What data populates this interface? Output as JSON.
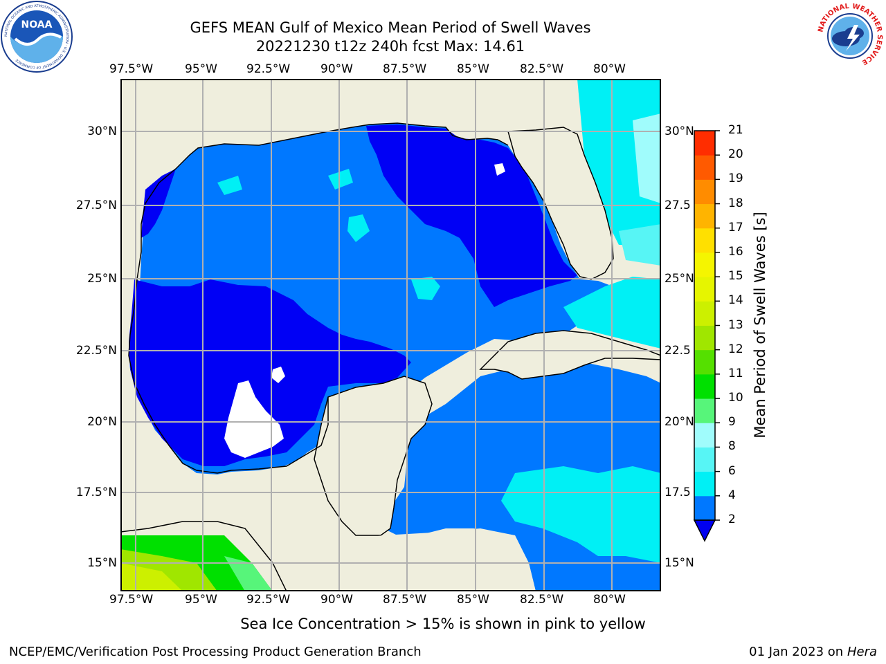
{
  "header": {
    "title": "GEFS MEAN Gulf of Mexico Mean Period of Swell Waves",
    "subtitle": "20221230 t12z 240h fcst   Max: 14.61"
  },
  "logos": {
    "noaa_text": "NOAA",
    "noaa_ring_text": "NATIONAL OCEANIC AND ATMOSPHERIC ADMINISTRATION · U.S. DEPARTMENT OF COMMERCE",
    "nws_ring_text": "NATIONAL WEATHER SERVICE"
  },
  "map": {
    "lon_ticks": [
      "97.5°W",
      "95°W",
      "92.5°W",
      "90°W",
      "87.5°W",
      "85°W",
      "82.5°W",
      "80°W"
    ],
    "lat_ticks_left": [
      "30°N",
      "27.5°N",
      "25°N",
      "22.5°N",
      "20°N",
      "17.5°N",
      "15°N"
    ],
    "lat_ticks_right": [
      "30°N",
      "27.5",
      "25°N",
      "22.5",
      "20°N",
      "17.5",
      "15°N"
    ],
    "colors": {
      "land": "#efeedd",
      "deep_blue": "#0000f5",
      "mid_blue": "#0078ff",
      "cyan": "#00f0f5",
      "light_cyan": "#57f5f5",
      "pale_cyan": "#a0fcfc",
      "grid": "#b0b0b0"
    }
  },
  "colorbar": {
    "label": "Mean Period of Swell Waves [s]",
    "ticks": [
      "21",
      "20",
      "19",
      "18",
      "17",
      "16",
      "15",
      "14",
      "13",
      "12",
      "11",
      "10",
      "9",
      "8",
      "6",
      "4",
      "2"
    ],
    "colors_bottom_to_top": [
      "#0000f0",
      "#0078ff",
      "#00f0f5",
      "#57f5f5",
      "#a0fcfc",
      "#57f57a",
      "#00e000",
      "#55e000",
      "#a0e600",
      "#ccf000",
      "#e6f500",
      "#f5f500",
      "#ffe000",
      "#ffb400",
      "#ff8c00",
      "#ff5a00",
      "#ff2d00",
      "#ff0000"
    ]
  },
  "footer": {
    "note": "Sea Ice Concentration > 15% is shown in pink to yellow",
    "credit": "NCEP/EMC/Verification Post Processing Product Generation Branch",
    "date": "01 Jan 2023 on ",
    "host": "Hera"
  }
}
